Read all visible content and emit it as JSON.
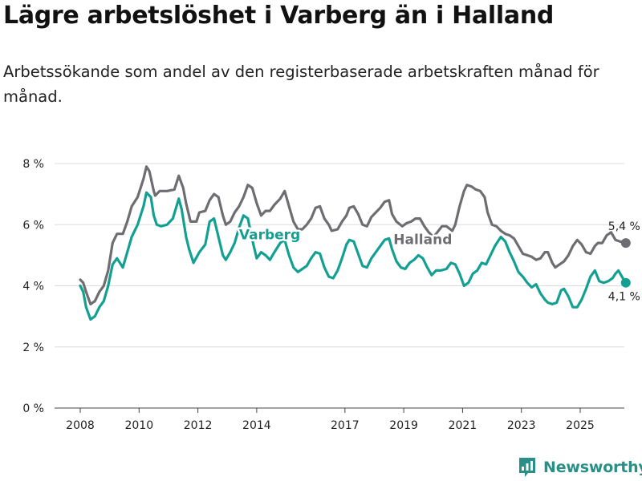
{
  "title": "Lägre arbetslöshet i Varberg än i Halland",
  "subtitle": "Arbetssökande som andel av den registerbaserade arbetskraften månad för månad.",
  "brand": {
    "name": "Newsworthy",
    "icon": "newsworthy-logo-icon",
    "color": "#2a8f87"
  },
  "chart_data": {
    "type": "line",
    "title": "Lägre arbetslöshet i Varberg än i Halland",
    "subtitle": "Arbetssökande som andel av den registerbaserade arbetskraften månad för månad.",
    "xlabel": "",
    "ylabel": "",
    "xlim": [
      2007.6,
      2026.6
    ],
    "ylim": [
      0,
      8
    ],
    "x_ticks": [
      2008,
      2010,
      2012,
      2014,
      2017,
      2019,
      2021,
      2023,
      2025
    ],
    "x_tick_labels": [
      "2008",
      "2010",
      "2012",
      "2014",
      "2017",
      "2019",
      "2021",
      "2023",
      "2025"
    ],
    "y_ticks": [
      0,
      2,
      4,
      6,
      8
    ],
    "y_tick_labels": [
      "0 %",
      "2 %",
      "4 %",
      "6 %",
      "8 %"
    ],
    "grid": true,
    "series": [
      {
        "name": "Halland",
        "label": "Halland",
        "color": "#6e6e72",
        "end_label": "5,4 %",
        "points": [
          [
            2008.0,
            4.2
          ],
          [
            2008.1,
            4.1
          ],
          [
            2008.2,
            3.8
          ],
          [
            2008.35,
            3.4
          ],
          [
            2008.5,
            3.5
          ],
          [
            2008.65,
            3.8
          ],
          [
            2008.8,
            4.0
          ],
          [
            2008.95,
            4.5
          ],
          [
            2009.1,
            5.4
          ],
          [
            2009.25,
            5.7
          ],
          [
            2009.45,
            5.7
          ],
          [
            2009.6,
            6.1
          ],
          [
            2009.75,
            6.6
          ],
          [
            2009.95,
            6.9
          ],
          [
            2010.15,
            7.5
          ],
          [
            2010.25,
            7.9
          ],
          [
            2010.35,
            7.75
          ],
          [
            2010.5,
            7.1
          ],
          [
            2010.55,
            6.95
          ],
          [
            2010.7,
            7.1
          ],
          [
            2010.95,
            7.1
          ],
          [
            2011.2,
            7.15
          ],
          [
            2011.35,
            7.6
          ],
          [
            2011.5,
            7.2
          ],
          [
            2011.6,
            6.7
          ],
          [
            2011.75,
            6.1
          ],
          [
            2011.95,
            6.1
          ],
          [
            2012.05,
            6.4
          ],
          [
            2012.25,
            6.45
          ],
          [
            2012.4,
            6.8
          ],
          [
            2012.55,
            7.0
          ],
          [
            2012.7,
            6.9
          ],
          [
            2012.85,
            6.3
          ],
          [
            2012.95,
            6.0
          ],
          [
            2013.1,
            6.1
          ],
          [
            2013.25,
            6.4
          ],
          [
            2013.4,
            6.6
          ],
          [
            2013.55,
            6.9
          ],
          [
            2013.7,
            7.3
          ],
          [
            2013.85,
            7.2
          ],
          [
            2014.0,
            6.7
          ],
          [
            2014.15,
            6.3
          ],
          [
            2014.3,
            6.45
          ],
          [
            2014.45,
            6.45
          ],
          [
            2014.6,
            6.65
          ],
          [
            2014.8,
            6.85
          ],
          [
            2014.95,
            7.1
          ],
          [
            2015.1,
            6.6
          ],
          [
            2015.25,
            6.1
          ],
          [
            2015.4,
            5.85
          ],
          [
            2015.55,
            5.85
          ],
          [
            2015.7,
            6.0
          ],
          [
            2015.85,
            6.2
          ],
          [
            2016.0,
            6.55
          ],
          [
            2016.15,
            6.6
          ],
          [
            2016.3,
            6.2
          ],
          [
            2016.45,
            6.0
          ],
          [
            2016.55,
            5.8
          ],
          [
            2016.75,
            5.85
          ],
          [
            2016.9,
            6.1
          ],
          [
            2017.05,
            6.3
          ],
          [
            2017.15,
            6.55
          ],
          [
            2017.3,
            6.6
          ],
          [
            2017.45,
            6.35
          ],
          [
            2017.6,
            6.0
          ],
          [
            2017.75,
            5.95
          ],
          [
            2017.9,
            6.25
          ],
          [
            2018.05,
            6.4
          ],
          [
            2018.2,
            6.55
          ],
          [
            2018.35,
            6.75
          ],
          [
            2018.5,
            6.8
          ],
          [
            2018.6,
            6.35
          ],
          [
            2018.75,
            6.1
          ],
          [
            2018.95,
            5.95
          ],
          [
            2019.1,
            6.05
          ],
          [
            2019.25,
            6.1
          ],
          [
            2019.4,
            6.2
          ],
          [
            2019.55,
            6.2
          ],
          [
            2019.7,
            5.95
          ],
          [
            2019.85,
            5.75
          ],
          [
            2020.0,
            5.6
          ],
          [
            2020.1,
            5.7
          ],
          [
            2020.3,
            5.95
          ],
          [
            2020.45,
            5.95
          ],
          [
            2020.65,
            5.8
          ],
          [
            2020.75,
            6.0
          ],
          [
            2020.9,
            6.6
          ],
          [
            2021.05,
            7.1
          ],
          [
            2021.15,
            7.3
          ],
          [
            2021.3,
            7.25
          ],
          [
            2021.45,
            7.15
          ],
          [
            2021.6,
            7.1
          ],
          [
            2021.75,
            6.9
          ],
          [
            2021.85,
            6.4
          ],
          [
            2022.0,
            6.0
          ],
          [
            2022.15,
            5.95
          ],
          [
            2022.3,
            5.8
          ],
          [
            2022.45,
            5.7
          ],
          [
            2022.6,
            5.65
          ],
          [
            2022.75,
            5.55
          ],
          [
            2022.9,
            5.3
          ],
          [
            2023.05,
            5.05
          ],
          [
            2023.2,
            5.0
          ],
          [
            2023.35,
            4.95
          ],
          [
            2023.5,
            4.85
          ],
          [
            2023.65,
            4.9
          ],
          [
            2023.8,
            5.1
          ],
          [
            2023.9,
            5.1
          ],
          [
            2024.05,
            4.75
          ],
          [
            2024.15,
            4.6
          ],
          [
            2024.3,
            4.7
          ],
          [
            2024.45,
            4.8
          ],
          [
            2024.6,
            5.0
          ],
          [
            2024.75,
            5.3
          ],
          [
            2024.9,
            5.5
          ],
          [
            2025.05,
            5.35
          ],
          [
            2025.2,
            5.1
          ],
          [
            2025.35,
            5.05
          ],
          [
            2025.5,
            5.3
          ],
          [
            2025.6,
            5.4
          ],
          [
            2025.75,
            5.4
          ],
          [
            2025.9,
            5.65
          ],
          [
            2026.05,
            5.75
          ],
          [
            2026.2,
            5.5
          ],
          [
            2026.35,
            5.45
          ],
          [
            2026.55,
            5.4
          ]
        ]
      },
      {
        "name": "Varberg",
        "label": "Varberg",
        "color": "#13a092",
        "end_label": "4,1 %",
        "points": [
          [
            2008.0,
            4.0
          ],
          [
            2008.1,
            3.8
          ],
          [
            2008.2,
            3.3
          ],
          [
            2008.35,
            2.9
          ],
          [
            2008.5,
            3.0
          ],
          [
            2008.65,
            3.3
          ],
          [
            2008.8,
            3.5
          ],
          [
            2008.95,
            4.0
          ],
          [
            2009.1,
            4.7
          ],
          [
            2009.25,
            4.9
          ],
          [
            2009.45,
            4.6
          ],
          [
            2009.6,
            5.1
          ],
          [
            2009.75,
            5.6
          ],
          [
            2009.95,
            6.0
          ],
          [
            2010.15,
            6.6
          ],
          [
            2010.25,
            7.05
          ],
          [
            2010.4,
            6.9
          ],
          [
            2010.5,
            6.3
          ],
          [
            2010.6,
            6.0
          ],
          [
            2010.75,
            5.95
          ],
          [
            2010.95,
            6.0
          ],
          [
            2011.15,
            6.2
          ],
          [
            2011.35,
            6.85
          ],
          [
            2011.45,
            6.5
          ],
          [
            2011.6,
            5.6
          ],
          [
            2011.7,
            5.2
          ],
          [
            2011.85,
            4.75
          ],
          [
            2012.05,
            5.1
          ],
          [
            2012.25,
            5.35
          ],
          [
            2012.4,
            6.1
          ],
          [
            2012.55,
            6.2
          ],
          [
            2012.7,
            5.6
          ],
          [
            2012.85,
            5.0
          ],
          [
            2012.95,
            4.85
          ],
          [
            2013.1,
            5.1
          ],
          [
            2013.25,
            5.4
          ],
          [
            2013.4,
            5.9
          ],
          [
            2013.55,
            6.3
          ],
          [
            2013.7,
            6.2
          ],
          [
            2013.85,
            5.5
          ],
          [
            2014.0,
            4.9
          ],
          [
            2014.15,
            5.1
          ],
          [
            2014.3,
            5.0
          ],
          [
            2014.45,
            4.85
          ],
          [
            2014.6,
            5.1
          ],
          [
            2014.8,
            5.4
          ],
          [
            2014.95,
            5.5
          ],
          [
            2015.1,
            5.0
          ],
          [
            2015.25,
            4.6
          ],
          [
            2015.4,
            4.45
          ],
          [
            2015.55,
            4.55
          ],
          [
            2015.7,
            4.65
          ],
          [
            2015.85,
            4.9
          ],
          [
            2016.0,
            5.1
          ],
          [
            2016.15,
            5.05
          ],
          [
            2016.3,
            4.6
          ],
          [
            2016.45,
            4.3
          ],
          [
            2016.6,
            4.25
          ],
          [
            2016.75,
            4.5
          ],
          [
            2016.9,
            4.9
          ],
          [
            2017.05,
            5.35
          ],
          [
            2017.15,
            5.5
          ],
          [
            2017.3,
            5.45
          ],
          [
            2017.45,
            5.05
          ],
          [
            2017.6,
            4.65
          ],
          [
            2017.75,
            4.6
          ],
          [
            2017.9,
            4.9
          ],
          [
            2018.05,
            5.1
          ],
          [
            2018.2,
            5.3
          ],
          [
            2018.35,
            5.5
          ],
          [
            2018.5,
            5.55
          ],
          [
            2018.6,
            5.2
          ],
          [
            2018.75,
            4.8
          ],
          [
            2018.9,
            4.6
          ],
          [
            2019.05,
            4.55
          ],
          [
            2019.2,
            4.75
          ],
          [
            2019.35,
            4.85
          ],
          [
            2019.5,
            5.0
          ],
          [
            2019.65,
            4.9
          ],
          [
            2019.8,
            4.6
          ],
          [
            2019.95,
            4.35
          ],
          [
            2020.1,
            4.5
          ],
          [
            2020.25,
            4.5
          ],
          [
            2020.45,
            4.55
          ],
          [
            2020.6,
            4.75
          ],
          [
            2020.75,
            4.7
          ],
          [
            2020.9,
            4.4
          ],
          [
            2021.05,
            4.0
          ],
          [
            2021.2,
            4.1
          ],
          [
            2021.35,
            4.4
          ],
          [
            2021.5,
            4.5
          ],
          [
            2021.65,
            4.75
          ],
          [
            2021.8,
            4.7
          ],
          [
            2021.95,
            5.0
          ],
          [
            2022.1,
            5.3
          ],
          [
            2022.3,
            5.6
          ],
          [
            2022.45,
            5.45
          ],
          [
            2022.6,
            5.1
          ],
          [
            2022.75,
            4.8
          ],
          [
            2022.9,
            4.45
          ],
          [
            2023.05,
            4.3
          ],
          [
            2023.2,
            4.1
          ],
          [
            2023.35,
            3.95
          ],
          [
            2023.5,
            4.05
          ],
          [
            2023.65,
            3.75
          ],
          [
            2023.8,
            3.55
          ],
          [
            2023.9,
            3.45
          ],
          [
            2024.05,
            3.4
          ],
          [
            2024.2,
            3.45
          ],
          [
            2024.35,
            3.85
          ],
          [
            2024.45,
            3.9
          ],
          [
            2024.6,
            3.65
          ],
          [
            2024.75,
            3.3
          ],
          [
            2024.9,
            3.3
          ],
          [
            2025.05,
            3.55
          ],
          [
            2025.2,
            3.9
          ],
          [
            2025.35,
            4.3
          ],
          [
            2025.5,
            4.5
          ],
          [
            2025.65,
            4.15
          ],
          [
            2025.8,
            4.1
          ],
          [
            2025.95,
            4.15
          ],
          [
            2026.1,
            4.25
          ],
          [
            2026.2,
            4.4
          ],
          [
            2026.3,
            4.5
          ],
          [
            2026.45,
            4.25
          ],
          [
            2026.55,
            4.1
          ]
        ]
      }
    ]
  }
}
